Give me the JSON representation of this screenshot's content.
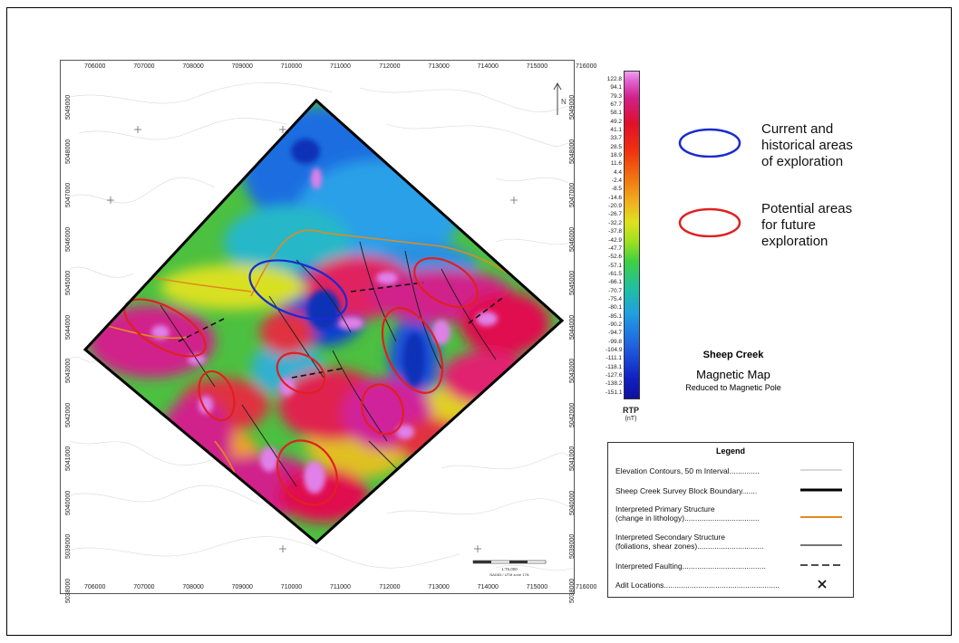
{
  "map": {
    "x_ticks": [
      "706000",
      "707000",
      "708000",
      "709000",
      "710000",
      "711000",
      "712000",
      "713000",
      "714000",
      "715000",
      "716000"
    ],
    "y_ticks": [
      "5049000",
      "5048000",
      "5047000",
      "5046000",
      "5045000",
      "5044000",
      "5043000",
      "5042000",
      "5041000",
      "5040000",
      "5039000",
      "5038000"
    ],
    "north_label": "N",
    "scale_text": "1:75,000",
    "scale_sub": "NAD83 / UTM zone 17N"
  },
  "colorbar": {
    "values": [
      "122.8",
      "94.1",
      "79.3",
      "67.7",
      "58.1",
      "49.2",
      "41.1",
      "33.7",
      "28.5",
      "18.9",
      "11.6",
      "4.4",
      "-2.4",
      "-8.5",
      "-14.6",
      "-20.9",
      "-26.7",
      "-32.2",
      "-37.8",
      "-42.9",
      "-47.7",
      "-52.6",
      "-57.1",
      "-61.5",
      "-66.1",
      "-70.7",
      "-75.4",
      "-80.1",
      "-85.1",
      "-90.2",
      "-94.7",
      "-99.8",
      "-104.9",
      "-111.1",
      "-118.1",
      "-127.6",
      "-138.2",
      "-151.1"
    ],
    "title": "RTP",
    "unit": "(nT)"
  },
  "area_keys": [
    {
      "label_lines": [
        "Current and",
        "historical areas",
        "of exploration"
      ],
      "color": "#1a2bd0"
    },
    {
      "label_lines": [
        "Potential areas",
        "for future",
        "exploration"
      ],
      "color": "#e02020"
    }
  ],
  "map_title": {
    "survey": "Sheep Creek",
    "name": "Magnetic Map",
    "subtitle": "Reduced to Magnetic Pole"
  },
  "legend": {
    "title": "Legend",
    "items": [
      {
        "text": "Elevation Contours, 50 m Interval..............",
        "symbol": "thin-grey-line"
      },
      {
        "text": "Sheep Creek Survey Block Boundary.......",
        "symbol": "thick-black-line"
      },
      {
        "text": "Interpreted Primary Structure\n(change in lithology)...................................",
        "symbol": "orange-line"
      },
      {
        "text": "Interpreted Secondary Structure\n(foliations, shear zones)...............................",
        "symbol": "thin-black-line"
      },
      {
        "text": "Interpreted Faulting.......................................",
        "symbol": "dashed-line"
      },
      {
        "text": "Adit Locations......................................................",
        "symbol": "x-mark"
      }
    ],
    "colors": {
      "contour": "#b0b0b0",
      "boundary": "#000000",
      "primary": "#e08a20",
      "secondary": "#222222",
      "fault": "#111111"
    }
  }
}
